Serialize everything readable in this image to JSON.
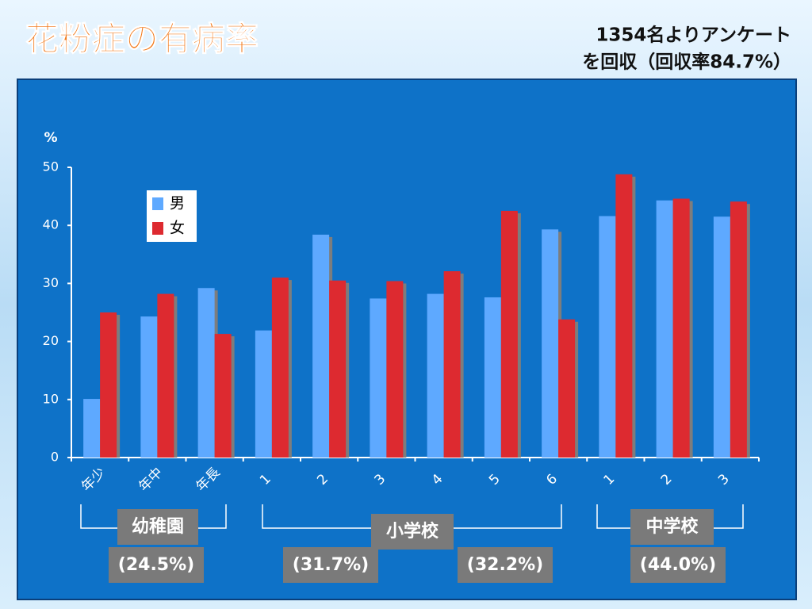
{
  "chart_data": {
    "type": "bar",
    "title": "花粉症の有病率",
    "note": [
      "1354名よりアンケート",
      "を回収（回収率84.7%）"
    ],
    "y_label": "%",
    "categories": [
      "年少",
      "年中",
      "年長",
      "1",
      "2",
      "3",
      "4",
      "5",
      "6",
      "1",
      "2",
      "3"
    ],
    "series": [
      {
        "name": "男",
        "color": "#5ea9ff",
        "values": [
          10.1,
          24.3,
          29.2,
          21.9,
          38.4,
          27.4,
          28.2,
          27.6,
          39.3,
          41.6,
          44.3,
          41.5
        ]
      },
      {
        "name": "女",
        "color": "#dd2a30",
        "values": [
          25.0,
          28.2,
          21.3,
          31.0,
          30.5,
          30.4,
          32.1,
          42.5,
          23.8,
          48.8,
          44.6,
          44.1
        ]
      }
    ],
    "ylim": [
      0,
      50
    ],
    "yticks": [
      0,
      10,
      20,
      30,
      40,
      50
    ],
    "groups": [
      {
        "name": "幼稚園",
        "rates": [
          "(24.5%)"
        ]
      },
      {
        "name": "小学校",
        "rates": [
          "(31.7%)",
          "(32.2%)"
        ]
      },
      {
        "name": "中学校",
        "rates": [
          "(44.0%)"
        ]
      }
    ]
  }
}
